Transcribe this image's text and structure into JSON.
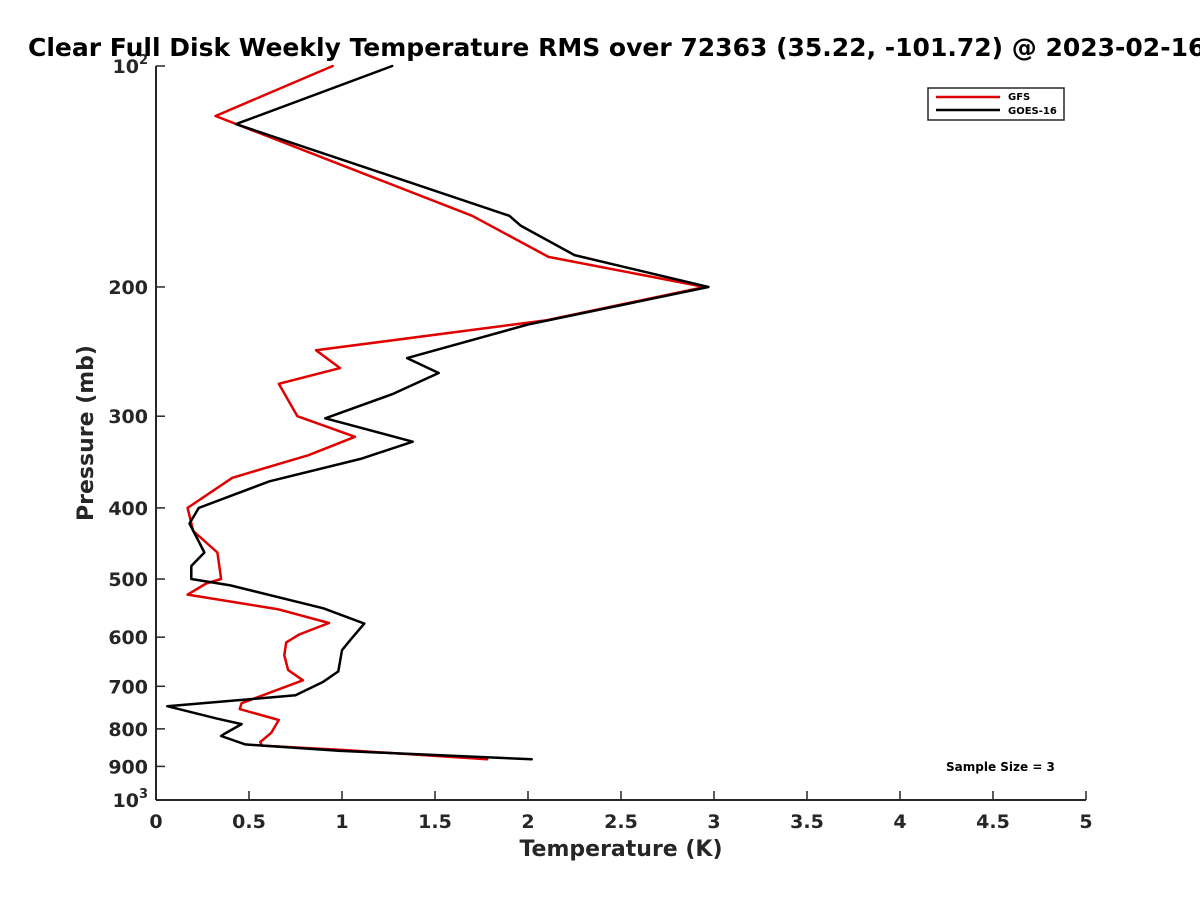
{
  "chart_data": {
    "type": "line",
    "title": "Clear Full Disk Weekly Temperature RMS over 72363 (35.22, -101.72) @ 2023-02-16",
    "xlabel": "Temperature (K)",
    "ylabel": "Pressure (mb)",
    "xlim": [
      0,
      5
    ],
    "ylim": [
      100,
      1000
    ],
    "y_scale": "log",
    "y_reversed": true,
    "x_ticks": [
      "0",
      "0.5",
      "1",
      "1.5",
      "2",
      "2.5",
      "3",
      "3.5",
      "4",
      "4.5",
      "5"
    ],
    "y_ticks": [
      {
        "value": 100,
        "base": "10",
        "exp": "2"
      },
      {
        "value": 200,
        "label": "200"
      },
      {
        "value": 300,
        "label": "300"
      },
      {
        "value": 400,
        "label": "400"
      },
      {
        "value": 500,
        "label": "500"
      },
      {
        "value": 600,
        "label": "600"
      },
      {
        "value": 700,
        "label": "700"
      },
      {
        "value": 800,
        "label": "800"
      },
      {
        "value": 900,
        "label": "900"
      },
      {
        "value": 1000,
        "base": "10",
        "exp": "3"
      }
    ],
    "legend_position": "top-right",
    "annotation": "Sample Size = 3",
    "series": [
      {
        "name": "GFS",
        "color": "#e00000",
        "points": [
          [
            0.95,
            100
          ],
          [
            0.32,
            117
          ],
          [
            1.7,
            160
          ],
          [
            2.11,
            182
          ],
          [
            2.95,
            200
          ],
          [
            2.1,
            222
          ],
          [
            0.86,
            244
          ],
          [
            0.99,
            258
          ],
          [
            0.66,
            271
          ],
          [
            0.76,
            300
          ],
          [
            1.07,
            320
          ],
          [
            0.82,
            339
          ],
          [
            0.41,
            364
          ],
          [
            0.17,
            400
          ],
          [
            0.2,
            430
          ],
          [
            0.33,
            460
          ],
          [
            0.35,
            500
          ],
          [
            0.27,
            507
          ],
          [
            0.17,
            525
          ],
          [
            0.66,
            550
          ],
          [
            0.93,
            574
          ],
          [
            0.77,
            595
          ],
          [
            0.7,
            610
          ],
          [
            0.69,
            635
          ],
          [
            0.71,
            665
          ],
          [
            0.79,
            687
          ],
          [
            0.46,
            738
          ],
          [
            0.45,
            752
          ],
          [
            0.66,
            778
          ],
          [
            0.62,
            810
          ],
          [
            0.56,
            834
          ],
          [
            0.57,
            843
          ],
          [
            1.02,
            855
          ],
          [
            1.78,
            880
          ]
        ]
      },
      {
        "name": "GOES-16",
        "color": "#000000",
        "points": [
          [
            1.27,
            100
          ],
          [
            0.43,
            120
          ],
          [
            1.9,
            160
          ],
          [
            1.96,
            165
          ],
          [
            2.25,
            181
          ],
          [
            2.97,
            200
          ],
          [
            2.0,
            225
          ],
          [
            1.35,
            250
          ],
          [
            1.52,
            262
          ],
          [
            1.27,
            280
          ],
          [
            0.91,
            302
          ],
          [
            1.38,
            325
          ],
          [
            1.1,
            343
          ],
          [
            0.61,
            368
          ],
          [
            0.23,
            400
          ],
          [
            0.18,
            420
          ],
          [
            0.26,
            460
          ],
          [
            0.19,
            480
          ],
          [
            0.19,
            500
          ],
          [
            0.4,
            510
          ],
          [
            0.9,
            548
          ],
          [
            1.12,
            575
          ],
          [
            1.05,
            603
          ],
          [
            1.0,
            625
          ],
          [
            0.98,
            668
          ],
          [
            0.9,
            690
          ],
          [
            0.75,
            720
          ],
          [
            0.06,
            745
          ],
          [
            0.33,
            775
          ],
          [
            0.46,
            788
          ],
          [
            0.37,
            812
          ],
          [
            0.35,
            818
          ],
          [
            0.48,
            840
          ],
          [
            0.98,
            857
          ],
          [
            2.02,
            880
          ]
        ]
      }
    ]
  }
}
